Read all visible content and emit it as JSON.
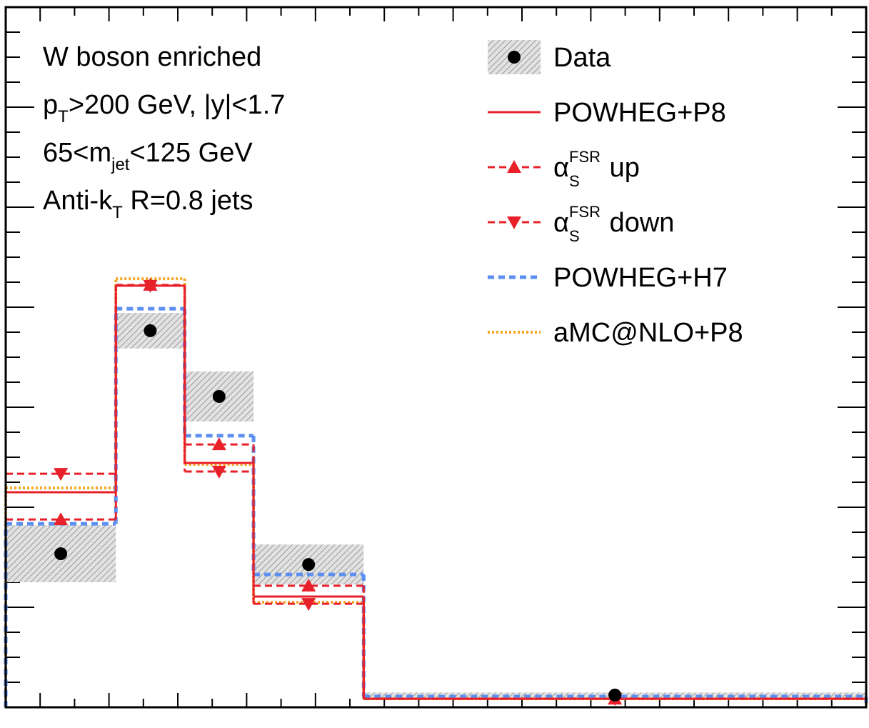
{
  "chart_data": {
    "type": "histogram",
    "annotations": [
      [
        "W boson enriched"
      ],
      [
        "p",
        "T",
        ">200 GeV, |y|<1.7"
      ],
      [
        "65<m",
        "jet",
        "<125 GeV"
      ],
      [
        "Anti-k",
        "T",
        " R=0.8 jets"
      ]
    ],
    "bins": [
      0,
      3.2,
      5.2,
      7.2,
      10.4,
      25
    ],
    "xlim": [
      0,
      25
    ],
    "ylim": [
      0,
      28
    ],
    "xticks": [
      1,
      2,
      3,
      4,
      5,
      6,
      7,
      8,
      9,
      10,
      11,
      12,
      13,
      14,
      15,
      16,
      17,
      18,
      19,
      20,
      21,
      22,
      23,
      24
    ],
    "yticks": [
      1,
      2,
      3,
      4,
      5,
      6,
      7,
      8,
      9,
      10,
      11,
      12,
      13,
      14,
      15,
      16,
      17,
      18,
      19,
      20,
      21,
      22,
      23,
      24,
      25,
      26,
      27
    ],
    "series": [
      {
        "name": "Data",
        "color": "#000000",
        "style": "points",
        "marker": "circle",
        "values": [
          6.14,
          15.06,
          12.43,
          5.71,
          0.49
        ],
        "errors": [
          1.14,
          0.71,
          1.0,
          0.8,
          0.1
        ]
      },
      {
        "name": "POWHEG+P8",
        "color": "#e8202a",
        "style": "solid",
        "marker": "none",
        "values": [
          8.6,
          16.86,
          9.77,
          4.43,
          0.34
        ]
      },
      {
        "name": {
          "base": "α",
          "sub": "S",
          "sup": "FSR",
          "text": " up"
        },
        "color": "#e8202a",
        "style": "dashed",
        "marker": "triangle-up",
        "values": [
          7.51,
          16.89,
          10.51,
          4.86,
          0.34
        ]
      },
      {
        "name": {
          "base": "α",
          "sub": "S",
          "sup": "FSR",
          "text": " down"
        },
        "color": "#e8202a",
        "style": "dashed",
        "marker": "triangle-down",
        "values": [
          9.34,
          16.86,
          9.43,
          4.14,
          0.34
        ]
      },
      {
        "name": "POWHEG+H7",
        "color": "#5b8ff0",
        "style": "bold-dashed",
        "marker": "none",
        "values": [
          7.34,
          15.94,
          10.86,
          5.31,
          0.43
        ]
      },
      {
        "name": "aMC@NLO+P8",
        "color": "#f5a623",
        "style": "dotted",
        "marker": "none",
        "values": [
          8.77,
          17.14,
          9.71,
          4.2,
          0.34
        ]
      }
    ]
  }
}
